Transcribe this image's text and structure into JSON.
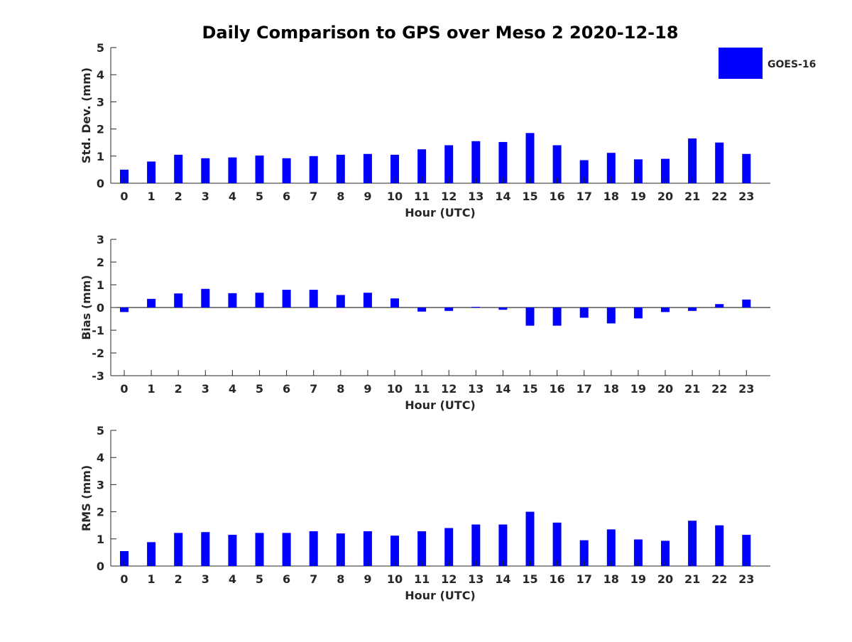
{
  "title": "Daily Comparison to GPS over Meso 2 2020-12-18",
  "legend": {
    "label": "GOES-16",
    "color": "#0000ff",
    "position": "top-right"
  },
  "colors": {
    "bar": "#0000ff",
    "axis": "#262626",
    "text": "#262626"
  },
  "chart_data": [
    {
      "type": "bar",
      "name": "std-dev",
      "ylabel": "Std. Dev. (mm)",
      "xlabel": "Hour (UTC)",
      "ylim": [
        0,
        5
      ],
      "yticks": [
        0,
        1,
        2,
        3,
        4,
        5
      ],
      "categories": [
        "0",
        "1",
        "2",
        "3",
        "4",
        "5",
        "6",
        "7",
        "8",
        "9",
        "10",
        "11",
        "12",
        "13",
        "14",
        "15",
        "16",
        "17",
        "18",
        "19",
        "20",
        "21",
        "22",
        "23"
      ],
      "series": [
        {
          "name": "GOES-16",
          "values": [
            0.5,
            0.8,
            1.05,
            0.92,
            0.95,
            1.02,
            0.92,
            1.0,
            1.05,
            1.08,
            1.05,
            1.25,
            1.4,
            1.55,
            1.52,
            1.85,
            1.4,
            0.85,
            1.12,
            0.88,
            0.9,
            1.65,
            1.5,
            1.08
          ]
        }
      ]
    },
    {
      "type": "bar",
      "name": "bias",
      "ylabel": "Bias (mm)",
      "xlabel": "Hour (UTC)",
      "ylim": [
        -3,
        3
      ],
      "yticks": [
        -3,
        -2,
        -1,
        0,
        1,
        2,
        3
      ],
      "baseline_line": true,
      "categories": [
        "0",
        "1",
        "2",
        "3",
        "4",
        "5",
        "6",
        "7",
        "8",
        "9",
        "10",
        "11",
        "12",
        "13",
        "14",
        "15",
        "16",
        "17",
        "18",
        "19",
        "20",
        "21",
        "22",
        "23"
      ],
      "series": [
        {
          "name": "GOES-16",
          "values": [
            -0.2,
            0.38,
            0.62,
            0.82,
            0.63,
            0.65,
            0.78,
            0.78,
            0.55,
            0.65,
            0.4,
            -0.18,
            -0.15,
            0.03,
            -0.1,
            -0.8,
            -0.8,
            -0.45,
            -0.7,
            -0.48,
            -0.2,
            -0.15,
            0.15,
            0.35
          ]
        }
      ]
    },
    {
      "type": "bar",
      "name": "rms",
      "ylabel": "RMS (mm)",
      "xlabel": "Hour (UTC)",
      "ylim": [
        0,
        5
      ],
      "yticks": [
        0,
        1,
        2,
        3,
        4,
        5
      ],
      "categories": [
        "0",
        "1",
        "2",
        "3",
        "4",
        "5",
        "6",
        "7",
        "8",
        "9",
        "10",
        "11",
        "12",
        "13",
        "14",
        "15",
        "16",
        "17",
        "18",
        "19",
        "20",
        "21",
        "22",
        "23"
      ],
      "series": [
        {
          "name": "GOES-16",
          "values": [
            0.55,
            0.88,
            1.22,
            1.25,
            1.15,
            1.22,
            1.22,
            1.28,
            1.2,
            1.28,
            1.12,
            1.28,
            1.4,
            1.53,
            1.53,
            2.0,
            1.6,
            0.95,
            1.35,
            0.98,
            0.93,
            1.67,
            1.5,
            1.15
          ]
        }
      ]
    }
  ]
}
